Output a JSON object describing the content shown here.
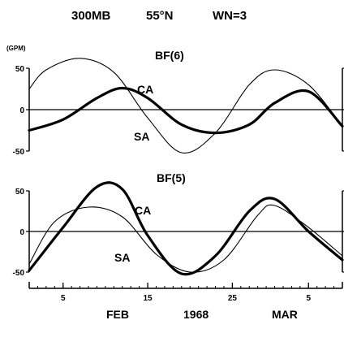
{
  "figure": {
    "header_level": "300MB",
    "header_lat": "55°N",
    "header_wn": "WN=3",
    "unit": "(GPM)",
    "month1": "FEB",
    "year": "1968",
    "month2": "MAR"
  },
  "chart_data": [
    {
      "type": "line",
      "title": "BF(6)",
      "xlabel": "",
      "ylabel": "(GPM)",
      "ylim": [
        -50,
        50
      ],
      "yticks": [
        50,
        0,
        -50
      ],
      "series": [
        {
          "name": "CA",
          "emphasis": "bold",
          "x": [
            "1968-02-01",
            "1968-02-05",
            "1968-02-09",
            "1968-02-12",
            "1968-02-15",
            "1968-02-19",
            "1968-02-23",
            "1968-02-27",
            "1968-03-01",
            "1968-03-05",
            "1968-03-09"
          ],
          "values": [
            -25,
            -12,
            14,
            26,
            14,
            -18,
            -28,
            -18,
            8,
            22,
            -20
          ]
        },
        {
          "name": "SA",
          "emphasis": "thin",
          "x": [
            "1968-02-01",
            "1968-02-03",
            "1968-02-07",
            "1968-02-11",
            "1968-02-15",
            "1968-02-19",
            "1968-02-23",
            "1968-02-27",
            "1968-03-01",
            "1968-03-05",
            "1968-03-09"
          ],
          "values": [
            25,
            48,
            62,
            45,
            -10,
            -52,
            -28,
            30,
            48,
            30,
            -20
          ]
        }
      ]
    },
    {
      "type": "line",
      "title": "BF(5)",
      "xlabel": "",
      "ylabel": "",
      "ylim": [
        -50,
        50
      ],
      "yticks": [
        50,
        0,
        -50
      ],
      "xticks": [
        "5",
        "15",
        "25",
        "5"
      ],
      "series": [
        {
          "name": "CA",
          "emphasis": "bold",
          "x": [
            "1968-02-01",
            "1968-02-05",
            "1968-02-09",
            "1968-02-12",
            "1968-02-15",
            "1968-02-19",
            "1968-02-23",
            "1968-02-27",
            "1968-03-01",
            "1968-03-05",
            "1968-03-09"
          ],
          "values": [
            -48,
            5,
            55,
            52,
            -5,
            -52,
            -30,
            25,
            40,
            0,
            -35
          ]
        },
        {
          "name": "SA",
          "emphasis": "thin",
          "x": [
            "1968-02-01",
            "1968-02-04",
            "1968-02-08",
            "1968-02-12",
            "1968-02-16",
            "1968-02-20",
            "1968-02-24",
            "1968-02-28",
            "1968-03-01",
            "1968-03-05",
            "1968-03-09"
          ],
          "values": [
            -40,
            12,
            30,
            18,
            -28,
            -50,
            -35,
            20,
            32,
            5,
            -30
          ]
        }
      ]
    }
  ]
}
